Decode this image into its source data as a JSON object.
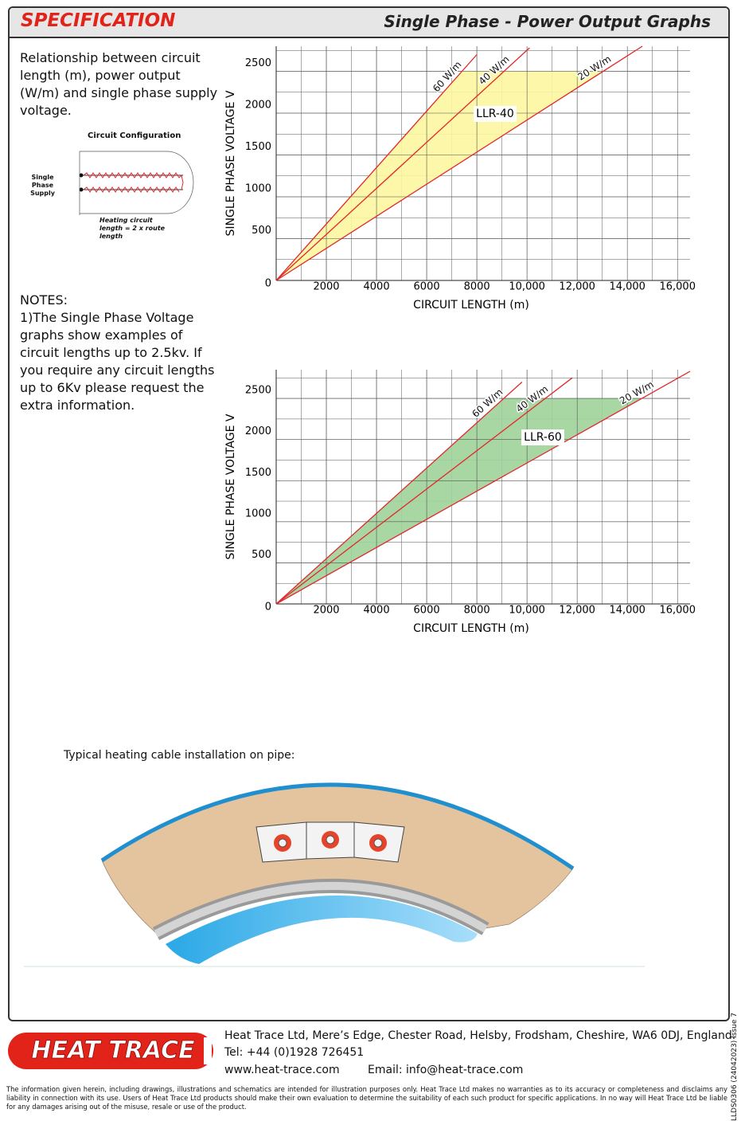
{
  "header": {
    "title": "SPECIFICATION",
    "subtitle": "Single Phase - Power Output Graphs"
  },
  "intro": "Relationship between circuit length (m), power output (W/m) and single phase supply voltage.",
  "circuit_diagram": {
    "title": "Circuit Configuration",
    "supply_label": "Single Phase Supply",
    "length_label": "Heating circuit length = 2 x route length"
  },
  "notes": {
    "title": "NOTES:",
    "text": "1)The Single Phase Voltage graphs show examples of circuit lengths up to 2.5kv. If you require any circuit lengths up to 6Kv please request the extra information."
  },
  "chart_data": [
    {
      "type": "line",
      "annotation": "LLR-40",
      "fill_color": "#fdf7a0",
      "line_color": "#e3262b",
      "x_label": "CIRCUIT LENGTH (m)",
      "y_label": "SINGLE PHASE VOLTAGE V",
      "xlim": [
        0,
        16500
      ],
      "ylim": [
        0,
        2800
      ],
      "xticks": [
        2000,
        4000,
        6000,
        8000,
        {
          "value": 10000,
          "label": "10,000"
        },
        {
          "value": 12000,
          "label": "12,000"
        },
        {
          "value": 14000,
          "label": "14,000"
        },
        {
          "value": 16000,
          "label": "16,000"
        }
      ],
      "yticks": [
        0,
        500,
        1000,
        1500,
        2000,
        2500
      ],
      "series": [
        {
          "name": "60 W/m",
          "x": [
            0,
            8000
          ],
          "values": [
            0,
            2700
          ]
        },
        {
          "name": "40 W/m",
          "x": [
            0,
            10100
          ],
          "values": [
            0,
            2780
          ]
        },
        {
          "name": "20 W/m",
          "x": [
            0,
            14600
          ],
          "values": [
            0,
            2800
          ]
        }
      ]
    },
    {
      "type": "line",
      "annotation": "LLR-60",
      "fill_color": "#9fd39a",
      "line_color": "#e3262b",
      "x_label": "CIRCUIT LENGTH (m)",
      "y_label": "SINGLE PHASE VOLTAGE V",
      "xlim": [
        0,
        16500
      ],
      "ylim": [
        0,
        2850
      ],
      "xticks": [
        2000,
        4000,
        6000,
        8000,
        {
          "value": 10000,
          "label": "10,000"
        },
        {
          "value": 12000,
          "label": "12,000"
        },
        {
          "value": 14000,
          "label": "14,000"
        },
        {
          "value": 16000,
          "label": "16,000"
        }
      ],
      "yticks": [
        0,
        500,
        1000,
        1500,
        2000,
        2500
      ],
      "series": [
        {
          "name": "60 W/m",
          "x": [
            0,
            9800
          ],
          "values": [
            0,
            2700
          ]
        },
        {
          "name": "40 W/m",
          "x": [
            0,
            11800
          ],
          "values": [
            0,
            2750
          ]
        },
        {
          "name": "20 W/m",
          "x": [
            0,
            16500
          ],
          "values": [
            0,
            2830
          ]
        }
      ]
    }
  ],
  "installation": {
    "caption": "Typical heating cable installation on pipe:"
  },
  "footer": {
    "logo": "HEAT TRACE",
    "company": "Heat Trace Ltd, Mere’s Edge, Chester Road, Helsby, Frodsham, Cheshire, WA6 0DJ, England.",
    "tel": "Tel: +44 (0)1928 726451",
    "web": "www.heat-trace.com",
    "email": "Email: info@heat-trace.com",
    "disclaimer": "The information given herein, including drawings, illustrations and schematics are intended for illustration purposes only. Heat Trace Ltd makes no warranties as to its accuracy or completeness and disclaims any liability in connection with its use. Users of Heat Trace Ltd products should make their own evaluation to determine the suitability of each such product for specific applications. In no way will Heat Trace Ltd be liable for any damages arising out of the misuse, resale or use of the product.",
    "doc_ref": "LLDS0306 (24042023) Issue 7"
  }
}
